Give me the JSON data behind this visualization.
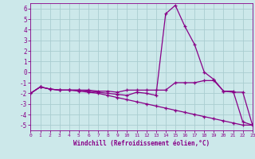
{
  "xlabel": "Windchill (Refroidissement éolien,°C)",
  "background_color": "#cce8ea",
  "grid_color": "#aacdd0",
  "line_color": "#880088",
  "xlim": [
    0,
    23
  ],
  "ylim": [
    -5.5,
    6.5
  ],
  "xticks": [
    0,
    1,
    2,
    3,
    4,
    5,
    6,
    7,
    8,
    9,
    10,
    11,
    12,
    13,
    14,
    15,
    16,
    17,
    18,
    19,
    20,
    21,
    22,
    23
  ],
  "yticks": [
    -5,
    -4,
    -3,
    -2,
    -1,
    0,
    1,
    2,
    3,
    4,
    5,
    6
  ],
  "line1_x": [
    0,
    1,
    2,
    3,
    4,
    5,
    6,
    7,
    8,
    9,
    10,
    11,
    12,
    13,
    14,
    15,
    16,
    17,
    18,
    19,
    20,
    21,
    22,
    23
  ],
  "line1_y": [
    -2.0,
    -1.4,
    -1.6,
    -1.7,
    -1.7,
    -1.7,
    -1.7,
    -1.8,
    -1.8,
    -1.9,
    -1.7,
    -1.7,
    -1.7,
    -1.7,
    -1.7,
    -1.0,
    -1.0,
    -1.0,
    -0.8,
    -0.8,
    -1.8,
    -1.9,
    -1.9,
    -5.0
  ],
  "line2_x": [
    0,
    1,
    2,
    3,
    4,
    5,
    6,
    7,
    8,
    9,
    10,
    11,
    12,
    13,
    14,
    15,
    16,
    17,
    18,
    19,
    20,
    21,
    22,
    23
  ],
  "line2_y": [
    -2.0,
    -1.4,
    -1.6,
    -1.7,
    -1.7,
    -1.7,
    -1.8,
    -1.9,
    -2.0,
    -2.1,
    -2.2,
    -1.9,
    -2.0,
    -2.2,
    5.5,
    6.3,
    4.3,
    2.6,
    0.0,
    -0.7,
    -1.8,
    -1.8,
    -4.7,
    -5.0
  ],
  "line3_x": [
    0,
    1,
    2,
    3,
    4,
    5,
    6,
    7,
    8,
    9,
    10,
    11,
    12,
    13,
    14,
    15,
    16,
    17,
    18,
    19,
    20,
    21,
    22,
    23
  ],
  "line3_y": [
    -2.0,
    -1.4,
    -1.6,
    -1.7,
    -1.7,
    -1.8,
    -1.9,
    -2.0,
    -2.2,
    -2.4,
    -2.6,
    -2.8,
    -3.0,
    -3.2,
    -3.4,
    -3.6,
    -3.8,
    -4.0,
    -4.2,
    -4.4,
    -4.6,
    -4.8,
    -5.0,
    -5.0
  ]
}
